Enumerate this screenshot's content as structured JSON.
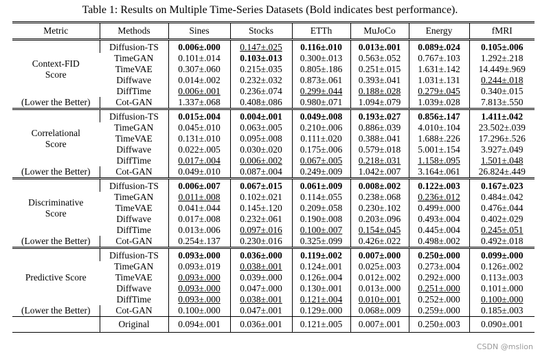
{
  "title": "Table 1: Results on Multiple Time-Series Datasets (Bold indicates best performance).",
  "header": [
    "Metric",
    "Methods",
    "Sines",
    "Stocks",
    "ETTh",
    "MuJoCo",
    "Energy",
    "fMRI"
  ],
  "groups": [
    {
      "metric": "Context-FID Score",
      "note": "(Lower the Better)",
      "rows": [
        {
          "method": "Diffusion-TS",
          "cells": [
            "0.006±.000",
            "0.147±.025",
            "0.116±.010",
            "0.013±.001",
            "0.089±.024",
            "0.105±.006"
          ],
          "bold": [
            0,
            2,
            3,
            4,
            5
          ],
          "underline": [
            1
          ]
        },
        {
          "method": "TimeGAN",
          "cells": [
            "0.101±.014",
            "0.103±.013",
            "0.300±.013",
            "0.563±.052",
            "0.767±.103",
            "1.292±.218"
          ],
          "bold": [
            1
          ],
          "underline": []
        },
        {
          "method": "TimeVAE",
          "cells": [
            "0.307±.060",
            "0.215±.035",
            "0.805±.186",
            "0.251±.015",
            "1.631±.142",
            "14.449±.969"
          ],
          "bold": [],
          "underline": []
        },
        {
          "method": "Diffwave",
          "cells": [
            "0.014±.002",
            "0.232±.032",
            "0.873±.061",
            "0.393±.041",
            "1.031±.131",
            "0.244±.018"
          ],
          "bold": [],
          "underline": [
            5
          ]
        },
        {
          "method": "DiffTime",
          "cells": [
            "0.006±.001",
            "0.236±.074",
            "0.299±.044",
            "0.188±.028",
            "0.279±.045",
            "0.340±.015"
          ],
          "bold": [],
          "underline": [
            0,
            2,
            3,
            4
          ]
        },
        {
          "method": "Cot-GAN",
          "cells": [
            "1.337±.068",
            "0.408±.086",
            "0.980±.071",
            "1.094±.079",
            "1.039±.028",
            "7.813±.550"
          ],
          "bold": [],
          "underline": []
        }
      ]
    },
    {
      "metric": "Correlational Score",
      "note": "(Lower the Better)",
      "rows": [
        {
          "method": "Diffusion-TS",
          "cells": [
            "0.015±.004",
            "0.004±.001",
            "0.049±.008",
            "0.193±.027",
            "0.856±.147",
            "1.411±.042"
          ],
          "bold": [
            0,
            1,
            2,
            3,
            4,
            5
          ],
          "underline": []
        },
        {
          "method": "TimeGAN",
          "cells": [
            "0.045±.010",
            "0.063±.005",
            "0.210±.006",
            "0.886±.039",
            "4.010±.104",
            "23.502±.039"
          ],
          "bold": [],
          "underline": []
        },
        {
          "method": "TimeVAE",
          "cells": [
            "0.131±.010",
            "0.095±.008",
            "0.111±.020",
            "0.388±.041",
            "1.688±.226",
            "17.296±.526"
          ],
          "bold": [],
          "underline": []
        },
        {
          "method": "Diffwave",
          "cells": [
            "0.022±.005",
            "0.030±.020",
            "0.175±.006",
            "0.579±.018",
            "5.001±.154",
            "3.927±.049"
          ],
          "bold": [],
          "underline": []
        },
        {
          "method": "DiffTime",
          "cells": [
            "0.017±.004",
            "0.006±.002",
            "0.067±.005",
            "0.218±.031",
            "1.158±.095",
            "1.501±.048"
          ],
          "bold": [],
          "underline": [
            0,
            1,
            2,
            3,
            4,
            5
          ]
        },
        {
          "method": "Cot-GAN",
          "cells": [
            "0.049±.010",
            "0.087±.004",
            "0.249±.009",
            "1.042±.007",
            "3.164±.061",
            "26.824±.449"
          ],
          "bold": [],
          "underline": []
        }
      ]
    },
    {
      "metric": "Discriminative Score",
      "note": "(Lower the Better)",
      "rows": [
        {
          "method": "Diffusion-TS",
          "cells": [
            "0.006±.007",
            "0.067±.015",
            "0.061±.009",
            "0.008±.002",
            "0.122±.003",
            "0.167±.023"
          ],
          "bold": [
            0,
            1,
            2,
            3,
            4,
            5
          ],
          "underline": []
        },
        {
          "method": "TimeGAN",
          "cells": [
            "0.011±.008",
            "0.102±.021",
            "0.114±.055",
            "0.238±.068",
            "0.236±.012",
            "0.484±.042"
          ],
          "bold": [],
          "underline": [
            0,
            4
          ]
        },
        {
          "method": "TimeVAE",
          "cells": [
            "0.041±.044",
            "0.145±.120",
            "0.209±.058",
            "0.230±.102",
            "0.499±.000",
            "0.476±.044"
          ],
          "bold": [],
          "underline": []
        },
        {
          "method": "Diffwave",
          "cells": [
            "0.017±.008",
            "0.232±.061",
            "0.190±.008",
            "0.203±.096",
            "0.493±.004",
            "0.402±.029"
          ],
          "bold": [],
          "underline": []
        },
        {
          "method": "DiffTime",
          "cells": [
            "0.013±.006",
            "0.097±.016",
            "0.100±.007",
            "0.154±.045",
            "0.445±.004",
            "0.245±.051"
          ],
          "bold": [],
          "underline": [
            1,
            2,
            3,
            5
          ]
        },
        {
          "method": "Cot-GAN",
          "cells": [
            "0.254±.137",
            "0.230±.016",
            "0.325±.099",
            "0.426±.022",
            "0.498±.002",
            "0.492±.018"
          ],
          "bold": [],
          "underline": []
        }
      ]
    },
    {
      "metric": "Predictive Score",
      "note": "(Lower the Better)",
      "rows": [
        {
          "method": "Diffusion-TS",
          "cells": [
            "0.093±.000",
            "0.036±.000",
            "0.119±.002",
            "0.007±.000",
            "0.250±.000",
            "0.099±.000"
          ],
          "bold": [
            0,
            1,
            2,
            3,
            4,
            5
          ],
          "underline": []
        },
        {
          "method": "TimeGAN",
          "cells": [
            "0.093±.019",
            "0.038±.001",
            "0.124±.001",
            "0.025±.003",
            "0.273±.004",
            "0.126±.002"
          ],
          "bold": [],
          "underline": [
            1
          ]
        },
        {
          "method": "TimeVAE",
          "cells": [
            "0.093±.000",
            "0.039±.000",
            "0.126±.004",
            "0.012±.002",
            "0.292±.000",
            "0.113±.003"
          ],
          "bold": [],
          "underline": [
            0
          ]
        },
        {
          "method": "Diffwave",
          "cells": [
            "0.093±.000",
            "0.047±.000",
            "0.130±.001",
            "0.013±.000",
            "0.251±.000",
            "0.101±.000"
          ],
          "bold": [],
          "underline": [
            0,
            4
          ]
        },
        {
          "method": "DiffTime",
          "cells": [
            "0.093±.000",
            "0.038±.001",
            "0.121±.004",
            "0.010±.001",
            "0.252±.000",
            "0.100±.000"
          ],
          "bold": [],
          "underline": [
            0,
            1,
            2,
            3,
            5
          ]
        },
        {
          "method": "Cot-GAN",
          "cells": [
            "0.100±.000",
            "0.047±.001",
            "0.129±.000",
            "0.068±.009",
            "0.259±.000",
            "0.185±.003"
          ],
          "bold": [],
          "underline": []
        }
      ]
    }
  ],
  "original": {
    "method": "Original",
    "cells": [
      "0.094±.001",
      "0.036±.001",
      "0.121±.005",
      "0.007±.001",
      "0.250±.003",
      "0.090±.001"
    ]
  },
  "watermark": "CSDN @mslion"
}
